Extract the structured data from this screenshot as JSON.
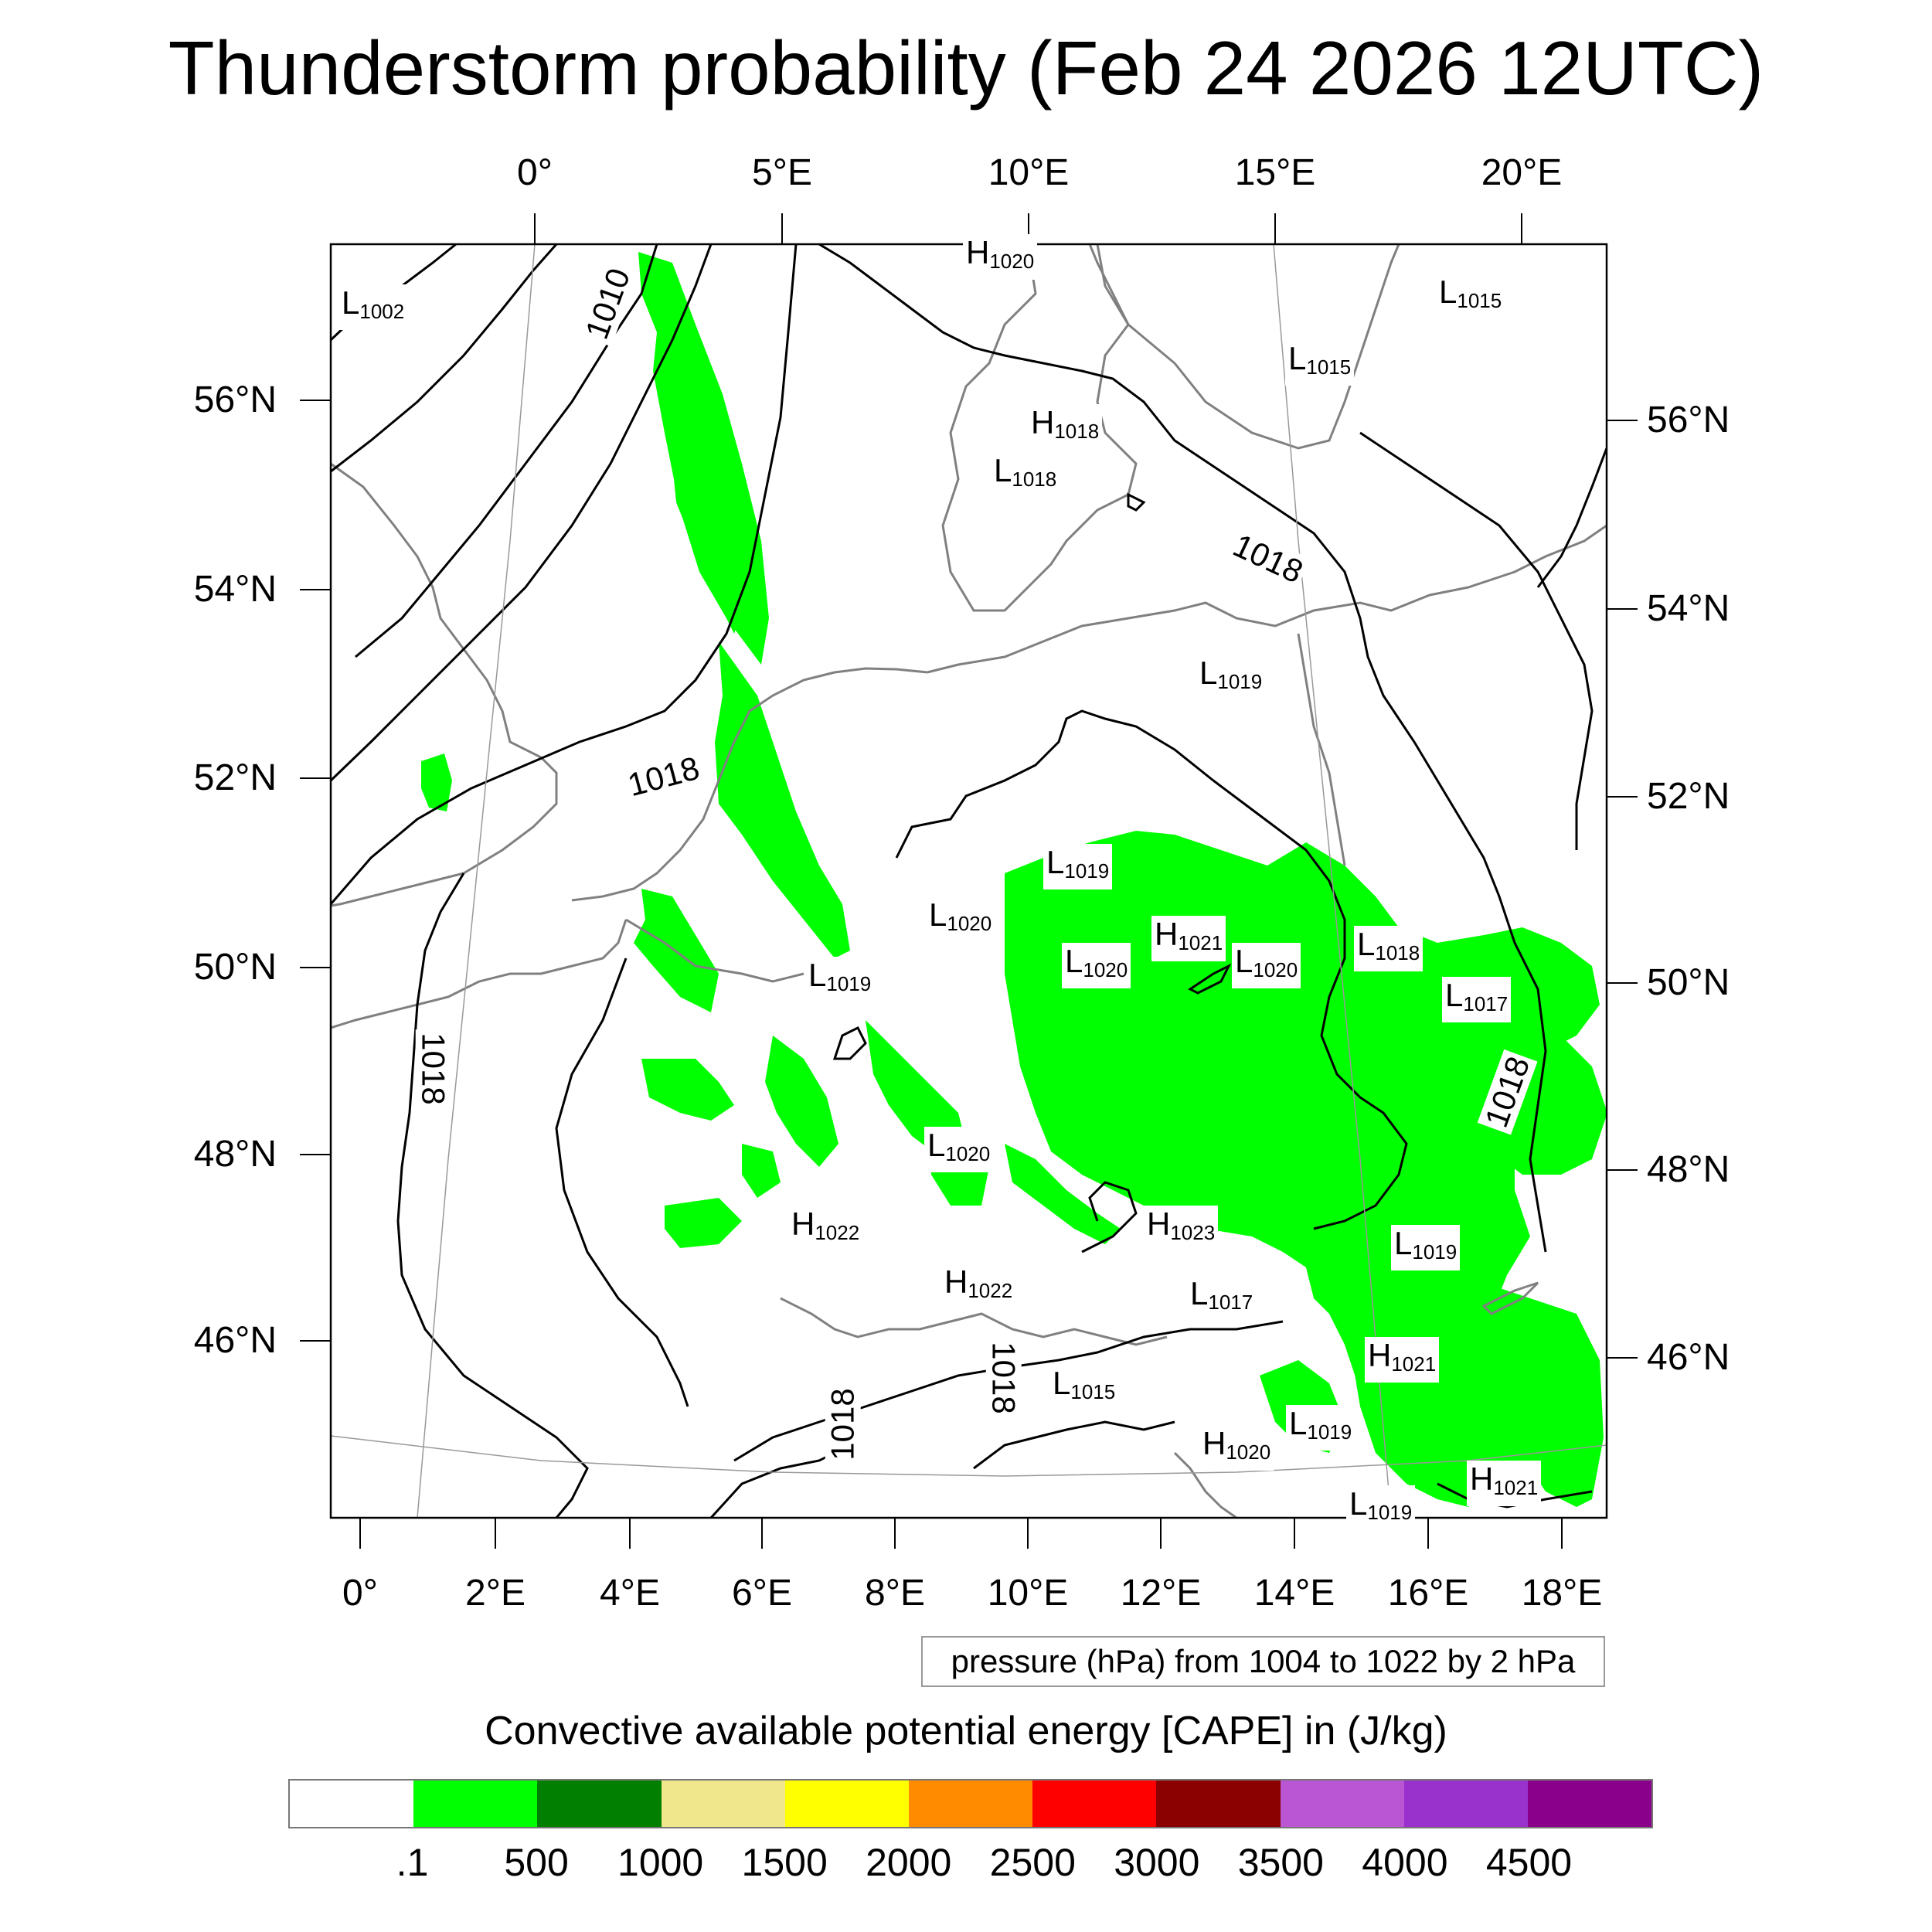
{
  "title": "Thunderstorm probability (Feb 24 2026 12UTC)",
  "axes": {
    "top_lon": [
      "0°",
      "5°E",
      "10°E",
      "15°E",
      "20°E"
    ],
    "bottom_lon": [
      "0°",
      "2°E",
      "4°E",
      "6°E",
      "8°E",
      "10°E",
      "12°E",
      "14°E",
      "16°E",
      "18°E"
    ],
    "left_lat": [
      "56°N",
      "54°N",
      "52°N",
      "50°N",
      "48°N",
      "46°N"
    ],
    "right_lat": [
      "56°N",
      "54°N",
      "52°N",
      "50°N",
      "48°N",
      "46°N"
    ]
  },
  "contour_note": "pressure (hPa) from 1004 to 1022 by 2 hPa",
  "contour_labels": [
    {
      "text": "1010"
    },
    {
      "text": "1018"
    },
    {
      "text": "1018"
    },
    {
      "text": "1018"
    },
    {
      "text": "1018"
    },
    {
      "text": "1018"
    },
    {
      "text": "1018"
    }
  ],
  "pressure_centers": [
    {
      "kind": "L",
      "value": "1002"
    },
    {
      "kind": "H",
      "value": "1020"
    },
    {
      "kind": "L",
      "value": "1015"
    },
    {
      "kind": "L",
      "value": "1015"
    },
    {
      "kind": "H",
      "value": "1018"
    },
    {
      "kind": "L",
      "value": "1018"
    },
    {
      "kind": "L",
      "value": "1019"
    },
    {
      "kind": "L",
      "value": "1019"
    },
    {
      "kind": "L",
      "value": "1020"
    },
    {
      "kind": "H",
      "value": "1021"
    },
    {
      "kind": "L",
      "value": "1020"
    },
    {
      "kind": "L",
      "value": "1020"
    },
    {
      "kind": "L",
      "value": "1018"
    },
    {
      "kind": "L",
      "value": "1017"
    },
    {
      "kind": "L",
      "value": "1019"
    },
    {
      "kind": "L",
      "value": "1020"
    },
    {
      "kind": "H",
      "value": "1022"
    },
    {
      "kind": "H",
      "value": "1023"
    },
    {
      "kind": "H",
      "value": "1022"
    },
    {
      "kind": "L",
      "value": "1017"
    },
    {
      "kind": "L",
      "value": "1019"
    },
    {
      "kind": "H",
      "value": "1021"
    },
    {
      "kind": "L",
      "value": "1015"
    },
    {
      "kind": "L",
      "value": "1019"
    },
    {
      "kind": "H",
      "value": "1020"
    },
    {
      "kind": "H",
      "value": "1021"
    },
    {
      "kind": "L",
      "value": "1019"
    }
  ],
  "colorbar": {
    "title": "Convective available potential energy [CAPE] in (J/kg)",
    "colors": [
      "#ffffff",
      "#00ff00",
      "#007f00",
      "#f0e68c",
      "#ffff00",
      "#ff8c00",
      "#ff0000",
      "#8b0000",
      "#ba55d3",
      "#9932cc",
      "#8b008b"
    ],
    "labels": [
      ".1",
      "500",
      "1000",
      "1500",
      "2000",
      "2500",
      "3000",
      "3500",
      "4000",
      "4500"
    ]
  },
  "colors": {
    "cape_fill": "#00ff00",
    "isobar": "#000000",
    "coastline": "#808080",
    "frame": "#000000"
  }
}
